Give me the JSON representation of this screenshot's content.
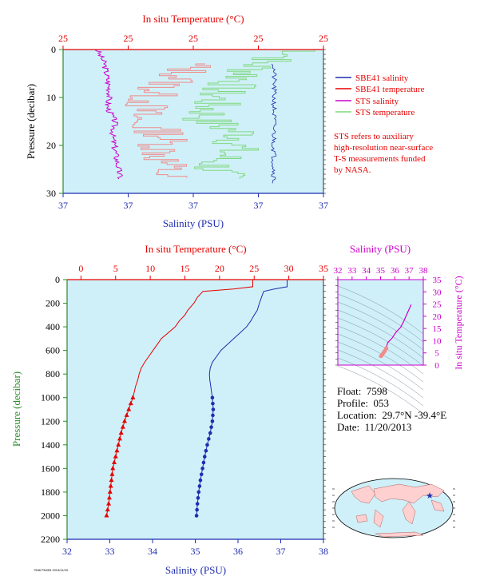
{
  "colors": {
    "red": "#e60000",
    "blue": "#1f2db0",
    "magenta": "#cc00cc",
    "green": "#2a8a2a",
    "plot_bg": "#cff0f8",
    "salmon": "#f08c8c",
    "lightgreen": "#80d880",
    "navy": "#1a1aa0"
  },
  "top_panel": {
    "top_axis_title": "In situ Temperature (°C)",
    "bottom_axis_title": "Salinity (PSU)",
    "left_axis_title": "Pressure (decibar)",
    "top_ticks": [
      "25",
      "25",
      "25",
      "25",
      "25"
    ],
    "bottom_ticks": [
      "37",
      "37",
      "37",
      "37",
      "37"
    ],
    "left_ticks": [
      "0",
      "10",
      "20",
      "30"
    ],
    "legend": [
      {
        "label": "SBE41 salinity",
        "color": "#1f2db0"
      },
      {
        "label": "SBE41 temperature",
        "color": "#e60000"
      },
      {
        "label": "STS salinity",
        "color": "#cc00cc"
      },
      {
        "label": "STS temperature",
        "color": "#80d880"
      }
    ],
    "note": [
      "STS refers to auxiliary",
      "high-resolution near-surface",
      "T-S measurements funded",
      "by NASA."
    ]
  },
  "main_panel": {
    "top_axis_title": "In situ Temperature (°C)",
    "bottom_axis_title": "Salinity (PSU)",
    "left_axis_title": "Pressure (decibar)",
    "top_ticks": [
      "0",
      "5",
      "10",
      "15",
      "20",
      "25",
      "30",
      "35"
    ],
    "bottom_ticks": [
      "32",
      "33",
      "34",
      "35",
      "36",
      "37",
      "38"
    ],
    "left_ticks": [
      "0",
      "200",
      "400",
      "600",
      "800",
      "1000",
      "1200",
      "1400",
      "1600",
      "1800",
      "2000",
      "2200"
    ]
  },
  "ts_panel": {
    "top_axis_title": "Salinity (PSU)",
    "right_axis_title": "In situ Temperature (°C)",
    "top_ticks": [
      "32",
      "33",
      "34",
      "35",
      "36",
      "37",
      "38"
    ],
    "right_ticks": [
      "0",
      "5",
      "10",
      "15",
      "20",
      "25",
      "30",
      "35"
    ]
  },
  "info": {
    "float_label": "Float:",
    "float_value": "7598",
    "profile_label": "Profile:",
    "profile_value": "053",
    "location_label": "Location:",
    "location_value": "29.7°N  -39.4°E",
    "date_label": "Date:",
    "date_value": "11/20/2013"
  },
  "footnote": "7598 PN053 2013/11/20",
  "chart_data": [
    {
      "type": "line",
      "name": "main profile",
      "y_axis": "pressure (decibar)",
      "ylim": [
        2200,
        0
      ],
      "temperature_xlim": [
        -2,
        35
      ],
      "salinity_xlim": [
        32,
        38
      ],
      "temperature": {
        "pressure": [
          0,
          60,
          80,
          100,
          150,
          200,
          260,
          300,
          350,
          400,
          450,
          500,
          550,
          600,
          650,
          700,
          750,
          800,
          850,
          900,
          950,
          1000,
          1100,
          1200,
          1300,
          1400,
          1500,
          1600,
          1700,
          1800,
          1900,
          2000
        ],
        "values": [
          24.8,
          24.8,
          22,
          17.6,
          16.8,
          16.3,
          15.4,
          15,
          14.2,
          13.6,
          12.6,
          11.6,
          11,
          10.4,
          9.8,
          9.2,
          8.7,
          8.4,
          8.2,
          7.9,
          7.7,
          7.5,
          6.9,
          6.3,
          5.8,
          5.4,
          5.0,
          4.6,
          4.4,
          4.2,
          4.0,
          3.7
        ]
      },
      "salinity": {
        "pressure": [
          0,
          60,
          80,
          100,
          150,
          200,
          260,
          300,
          350,
          400,
          450,
          500,
          550,
          600,
          650,
          700,
          750,
          800,
          850,
          900,
          950,
          1000,
          1100,
          1200,
          1300,
          1400,
          1500,
          1600,
          1700,
          1800,
          1900,
          2000
        ],
        "values": [
          37.15,
          37.15,
          36.85,
          36.6,
          36.55,
          36.5,
          36.45,
          36.38,
          36.3,
          36.2,
          36.05,
          35.9,
          35.75,
          35.6,
          35.5,
          35.4,
          35.35,
          35.33,
          35.34,
          35.36,
          35.38,
          35.4,
          35.42,
          35.4,
          35.35,
          35.28,
          35.22,
          35.17,
          35.12,
          35.08,
          35.05,
          35.03
        ]
      },
      "marker_pressures": [
        1000,
        1050,
        1100,
        1150,
        1200,
        1250,
        1300,
        1350,
        1400,
        1450,
        1500,
        1550,
        1600,
        1650,
        1700,
        1750,
        1800,
        1850,
        1900,
        1950,
        2000
      ]
    },
    {
      "type": "line",
      "name": "near-surface",
      "y_axis": "pressure (decibar)",
      "ylim": [
        30,
        0
      ],
      "sbe41_salinity": {
        "pressure": [
          3,
          28
        ],
        "values": [
          0.81,
          0.81
        ],
        "unit": "fraction of axis width"
      },
      "sts_salinity": {
        "pressure": [
          0,
          3,
          6,
          9,
          12,
          15,
          18,
          21,
          24,
          27
        ],
        "values": [
          0.13,
          0.16,
          0.17,
          0.18,
          0.17,
          0.2,
          0.19,
          0.2,
          0.21,
          0.22
        ],
        "unit": "fraction of axis width"
      },
      "sts_temperature": {
        "pressure": [
          0,
          3,
          6,
          9,
          12,
          15,
          18,
          21,
          24,
          27
        ],
        "values": [
          0.98,
          0.75,
          0.7,
          0.6,
          0.57,
          0.55,
          0.7,
          0.65,
          0.58,
          0.6
        ],
        "unit": "fraction of axis width"
      },
      "sbe41_temperature": {
        "pressure": [
          3,
          6,
          9,
          12,
          15,
          18,
          21,
          24,
          27
        ],
        "values": [
          0.5,
          0.45,
          0.35,
          0.32,
          0.27,
          0.4,
          0.38,
          0.39,
          0.4
        ],
        "unit": "fraction of axis width"
      }
    },
    {
      "type": "scatter",
      "name": "T-S diagram",
      "xlabel": "Salinity (PSU)",
      "ylabel": "In situ Temperature (°C)",
      "xlim": [
        32,
        38
      ],
      "ylim": [
        0,
        35
      ],
      "salinity": [
        35.03,
        35.1,
        35.2,
        35.3,
        35.4,
        35.42,
        35.5,
        35.8,
        36.1,
        36.4,
        36.6,
        37.15
      ],
      "temperature": [
        3.7,
        4.2,
        5.0,
        5.8,
        6.9,
        7.5,
        9.2,
        11.0,
        13.6,
        15.4,
        17.6,
        24.8
      ]
    }
  ]
}
